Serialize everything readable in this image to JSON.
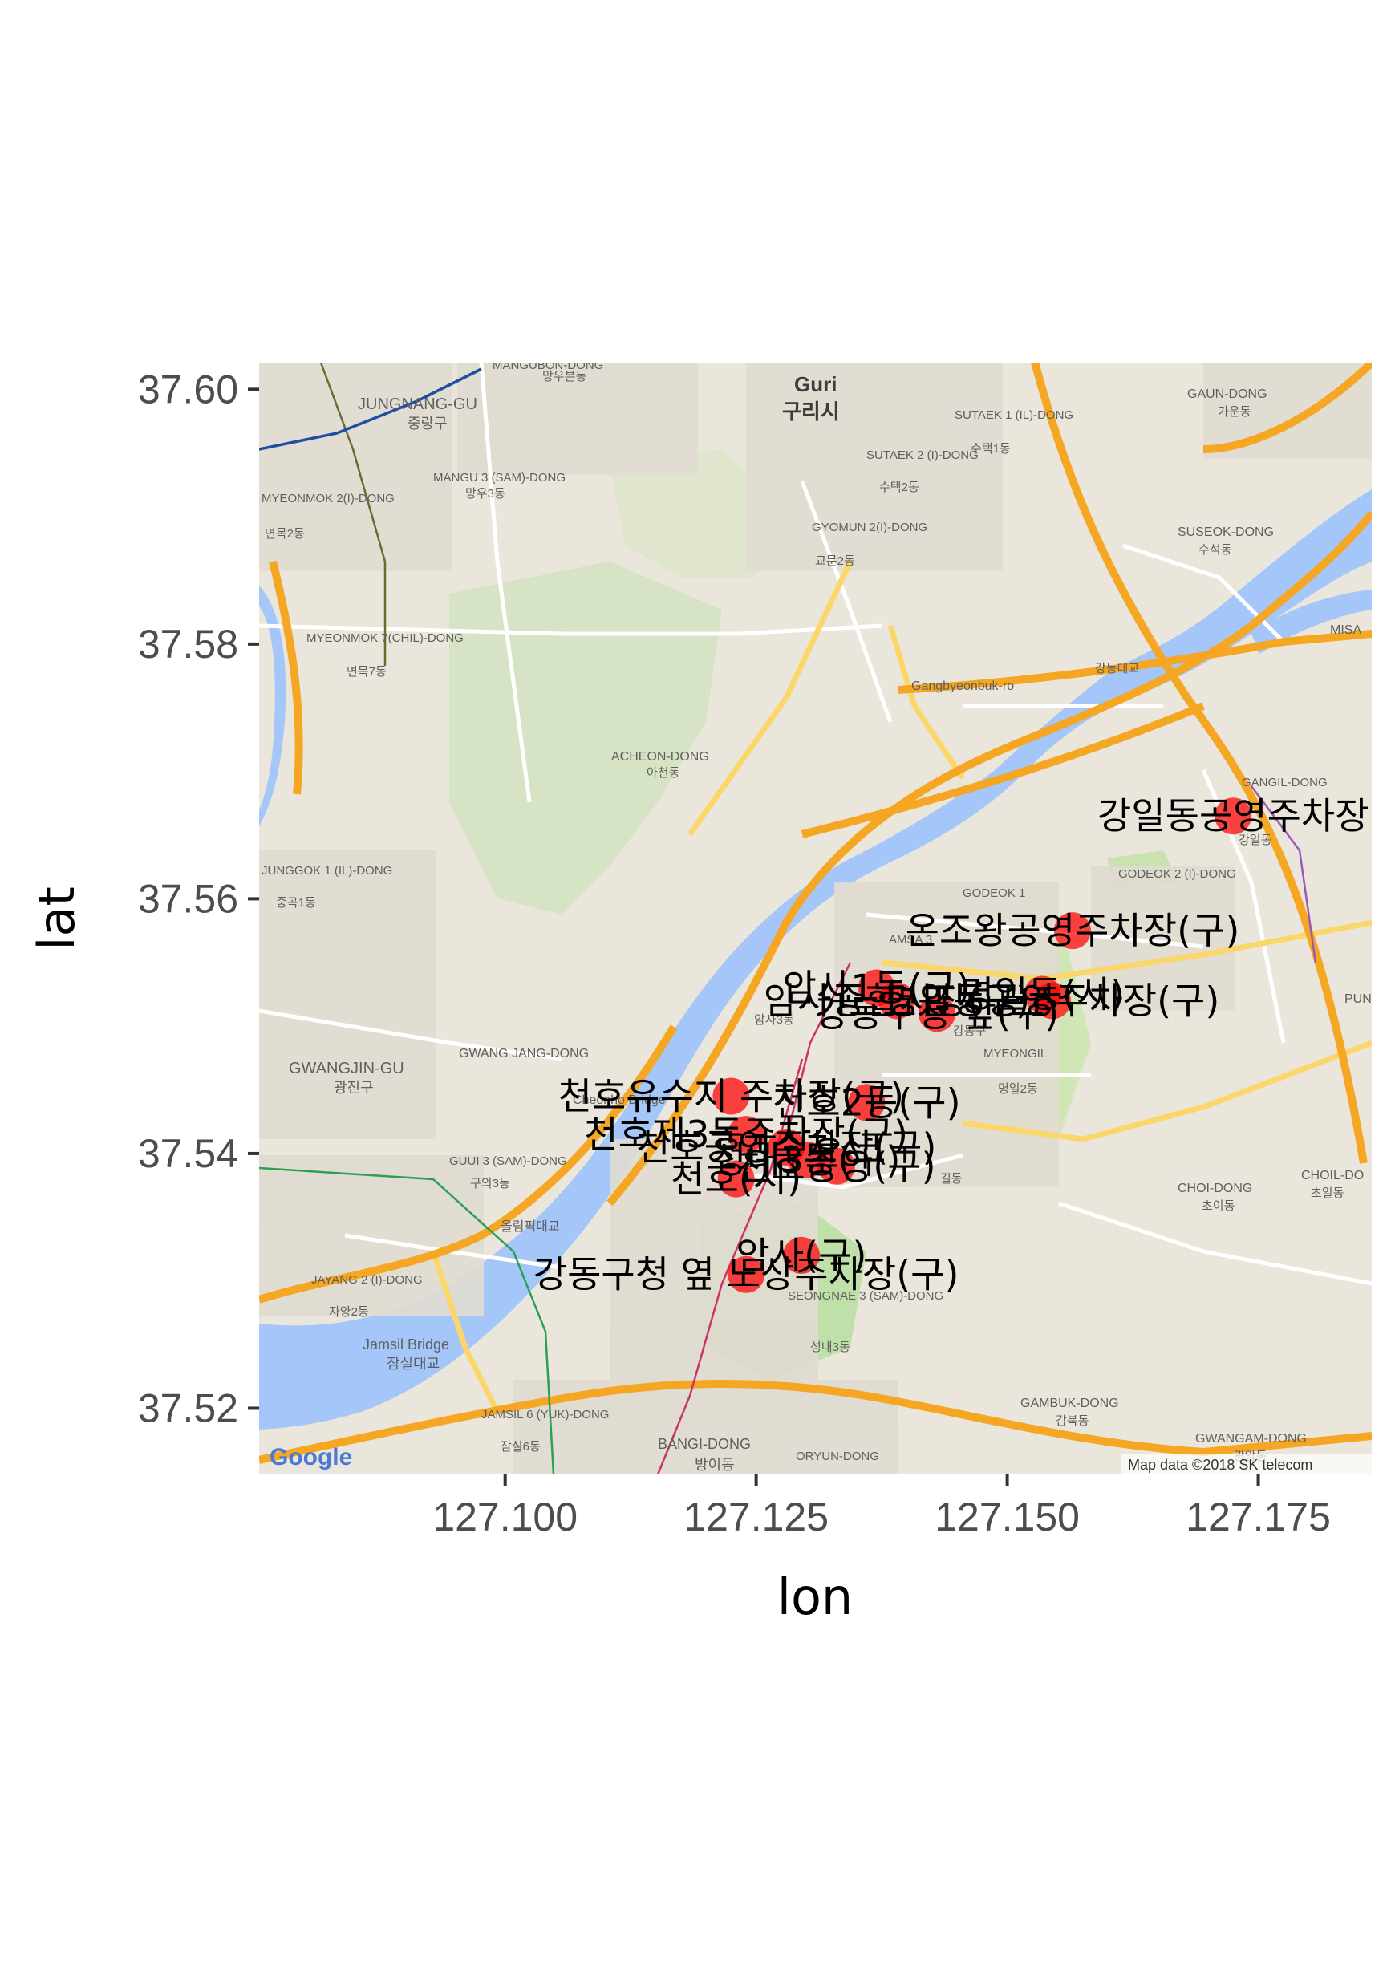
{
  "chart_data": {
    "type": "scatter",
    "xlabel": "lon",
    "ylabel": "lat",
    "xlim": [
      127.0755,
      127.1863
    ],
    "ylim": [
      37.5148,
      37.6021
    ],
    "x_ticks": [
      "127.100",
      "127.125",
      "127.150",
      "127.175"
    ],
    "x_tick_values": [
      127.1,
      127.125,
      127.15,
      127.175
    ],
    "y_ticks": [
      "37.52",
      "37.54",
      "37.56",
      "37.58",
      "37.60"
    ],
    "y_tick_values": [
      37.52,
      37.54,
      37.56,
      37.58,
      37.6
    ],
    "marker_color": "#ff0000",
    "points": [
      {
        "name": "강일동공영주차장",
        "lon": 127.1725,
        "lat": 37.5665
      },
      {
        "name": "온조왕공영주차장(구)",
        "lon": 127.1565,
        "lat": 37.5575
      },
      {
        "name": "명일동(시)",
        "lon": 127.1535,
        "lat": 37.5525
      },
      {
        "name": "명일동공영주차장(구)",
        "lon": 127.1545,
        "lat": 37.552
      },
      {
        "name": "암사1동(구)",
        "lon": 127.137,
        "lat": 37.553
      },
      {
        "name": "암사종합시장(구)",
        "lon": 127.139,
        "lat": 37.552
      },
      {
        "name": "강동구청 앞(구)",
        "lon": 127.143,
        "lat": 37.551
      },
      {
        "name": "천호유수지 주차장(구)",
        "lon": 127.1225,
        "lat": 37.5445
      },
      {
        "name": "천호2동(구)",
        "lon": 127.136,
        "lat": 37.544
      },
      {
        "name": "천호제3동주차장(구)",
        "lon": 127.124,
        "lat": 37.5415
      },
      {
        "name": "천호공영주차장(구)",
        "lon": 127.128,
        "lat": 37.5405
      },
      {
        "name": "성내3동(구)",
        "lon": 127.13,
        "lat": 37.5395
      },
      {
        "name": "천호(시)",
        "lon": 127.123,
        "lat": 37.538
      },
      {
        "name": "천호중앙(구)",
        "lon": 127.133,
        "lat": 37.539
      },
      {
        "name": "암사(구)",
        "lon": 127.1295,
        "lat": 37.532
      },
      {
        "name": "강동구청 옆 노상주차장(구)",
        "lon": 127.124,
        "lat": 37.5305
      }
    ]
  },
  "map": {
    "attribution": "Map data ©2018 SK telecom",
    "google_logo": "Google",
    "water_color": "#a4c6f9",
    "land_color": "#ebe6dc",
    "highway_color": "#f5a623",
    "labels": [
      {
        "text": "Guri",
        "kind": "city"
      },
      {
        "text": "구리시",
        "kind": "city"
      },
      {
        "text": "JUNGNANG-GU",
        "kind": "district"
      },
      {
        "text": "중랑구",
        "kind": "district"
      },
      {
        "text": "GWANGJIN-GU",
        "kind": "district"
      },
      {
        "text": "광진구",
        "kind": "district"
      },
      {
        "text": "MANGU 3 (SAM)-DONG",
        "kind": "area"
      },
      {
        "text": "망우3동",
        "kind": "area"
      },
      {
        "text": "MYEONMOK 7(CHIL)-DONG",
        "kind": "area"
      },
      {
        "text": "면목7동",
        "kind": "area"
      },
      {
        "text": "SUTAEK 1 (IL)-DONG",
        "kind": "area"
      },
      {
        "text": "수택1동",
        "kind": "area"
      },
      {
        "text": "SUTAEK 2 (I)-DONG",
        "kind": "area"
      },
      {
        "text": "수택2동",
        "kind": "area"
      },
      {
        "text": "GYOMUN 2(I)-DONG",
        "kind": "area"
      },
      {
        "text": "교문2동",
        "kind": "area"
      },
      {
        "text": "GAUN-DONG",
        "kind": "area"
      },
      {
        "text": "가운동",
        "kind": "area"
      },
      {
        "text": "SUSEOK-DONG",
        "kind": "area"
      },
      {
        "text": "수석동",
        "kind": "area"
      },
      {
        "text": "ACHEON-DONG",
        "kind": "area"
      },
      {
        "text": "아천동",
        "kind": "area"
      },
      {
        "text": "Gangbyeonbuk-ro",
        "kind": "road"
      },
      {
        "text": "강동대교",
        "kind": "road"
      },
      {
        "text": "GANGIL-DONG",
        "kind": "area"
      },
      {
        "text": "강일동",
        "kind": "area"
      },
      {
        "text": "GODEOK 2 (I)-DONG",
        "kind": "area"
      },
      {
        "text": "GODEOK 1",
        "kind": "area"
      },
      {
        "text": "AMSA 3",
        "kind": "area"
      },
      {
        "text": "암사3동",
        "kind": "area"
      },
      {
        "text": "강동구",
        "kind": "district"
      },
      {
        "text": "MYEONGIL",
        "kind": "area"
      },
      {
        "text": "명일2동",
        "kind": "area"
      },
      {
        "text": "GWANG JANG-DONG",
        "kind": "area"
      },
      {
        "text": "Cheonho Bridge",
        "kind": "road"
      },
      {
        "text": "GUUI 3 (SAM)-DONG",
        "kind": "area"
      },
      {
        "text": "구의3동",
        "kind": "area"
      },
      {
        "text": "올림픽대교",
        "kind": "road"
      },
      {
        "text": "JAYANG 2 (I)-DONG",
        "kind": "area"
      },
      {
        "text": "자양2동",
        "kind": "area"
      },
      {
        "text": "Jamsil Bridge",
        "kind": "road"
      },
      {
        "text": "잠실대교",
        "kind": "road"
      },
      {
        "text": "SEONGNAE 3 (SAM)-DONG",
        "kind": "area"
      },
      {
        "text": "성내3동",
        "kind": "area"
      },
      {
        "text": "CHOI-DONG",
        "kind": "area"
      },
      {
        "text": "초이동",
        "kind": "area"
      },
      {
        "text": "CHOIL-DO",
        "kind": "area"
      },
      {
        "text": "초일동",
        "kind": "area"
      },
      {
        "text": "GAMBUK-DONG",
        "kind": "area"
      },
      {
        "text": "감북동",
        "kind": "area"
      },
      {
        "text": "GWANGAM-DONG",
        "kind": "area"
      },
      {
        "text": "광암동",
        "kind": "area"
      },
      {
        "text": "JAMSIL 6 (YUK)-DONG",
        "kind": "area"
      },
      {
        "text": "잠실6동",
        "kind": "area"
      },
      {
        "text": "BANGI-DONG",
        "kind": "area"
      },
      {
        "text": "방이동",
        "kind": "area"
      },
      {
        "text": "ORYUN-DONG",
        "kind": "area"
      },
      {
        "text": "JUNGGOK 1 (IL)-DONG",
        "kind": "area"
      },
      {
        "text": "중곡1동",
        "kind": "area"
      },
      {
        "text": "MYEONMOK 2(I)-DONG",
        "kind": "area"
      },
      {
        "text": "면목2동",
        "kind": "area"
      },
      {
        "text": "MISA",
        "kind": "area"
      },
      {
        "text": "PUN",
        "kind": "area"
      },
      {
        "text": "길동",
        "kind": "area"
      },
      {
        "text": "MANGUBON-DONG",
        "kind": "area"
      },
      {
        "text": "망우본동",
        "kind": "area"
      }
    ]
  }
}
